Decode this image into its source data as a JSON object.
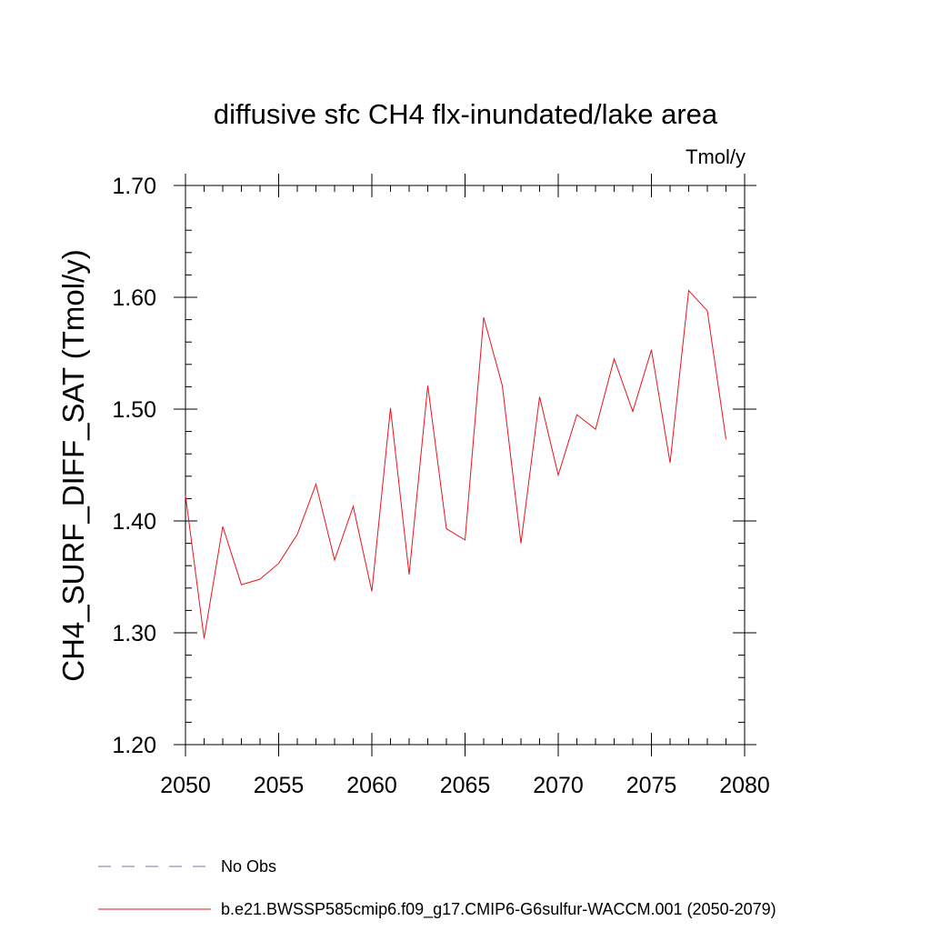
{
  "chart_data": {
    "type": "line",
    "title": "diffusive sfc CH4 flx-inundated/lake area",
    "units": "Tmol/y",
    "ylabel": "CH4_SURF_DIFF_SAT  (Tmol/y)",
    "xlabel": "",
    "xlim": [
      2050,
      2080
    ],
    "ylim": [
      1.2,
      1.7
    ],
    "x_ticks": [
      2050,
      2055,
      2060,
      2065,
      2070,
      2075,
      2080
    ],
    "x_tick_labels": [
      "2050",
      "2055",
      "2060",
      "2065",
      "2070",
      "2075",
      "2080"
    ],
    "y_ticks": [
      1.2,
      1.3,
      1.4,
      1.5,
      1.6,
      1.7
    ],
    "y_tick_labels": [
      "1.20",
      "1.30",
      "1.40",
      "1.50",
      "1.60",
      "1.70"
    ],
    "grid": false,
    "legend_placement": "bottom-left, below plot",
    "series": [
      {
        "name": "b.e21.BWSSP585cmip6.f09_g17.CMIP6-G6sulfur-WACCM.001 (2050-2079)",
        "color": "#e8141e",
        "x": [
          2050,
          2051,
          2052,
          2053,
          2054,
          2055,
          2056,
          2057,
          2058,
          2059,
          2060,
          2061,
          2062,
          2063,
          2064,
          2065,
          2066,
          2067,
          2068,
          2069,
          2070,
          2071,
          2072,
          2073,
          2074,
          2075,
          2076,
          2077,
          2078,
          2079
        ],
        "values": [
          1.423,
          1.295,
          1.395,
          1.343,
          1.348,
          1.362,
          1.388,
          1.433,
          1.365,
          1.413,
          1.337,
          1.501,
          1.352,
          1.521,
          1.393,
          1.383,
          1.582,
          1.521,
          1.38,
          1.511,
          1.441,
          1.495,
          1.482,
          1.545,
          1.498,
          1.553,
          1.452,
          1.606,
          1.588,
          1.473
        ]
      }
    ],
    "legend": [
      {
        "label": "No Obs",
        "style": "dashed",
        "color": "#7b6fb0"
      },
      {
        "label": "b.e21.BWSSP585cmip6.f09_g17.CMIP6-G6sulfur-WACCM.001 (2050-2079)",
        "style": "solid",
        "color": "#e8141e"
      }
    ]
  }
}
